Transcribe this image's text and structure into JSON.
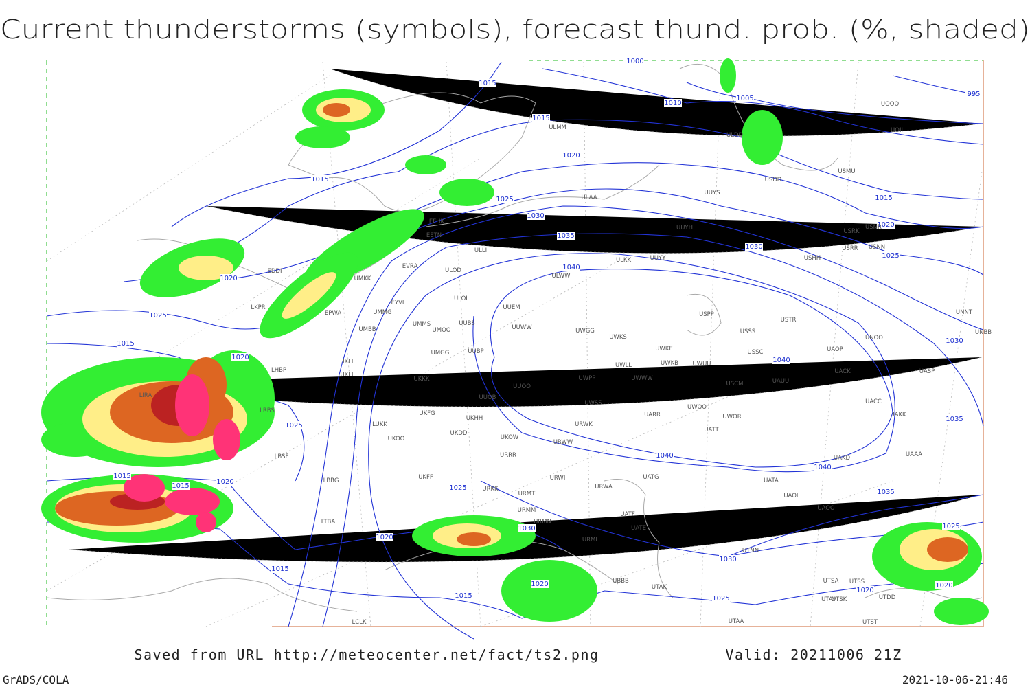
{
  "title": "Current thunderstorms (symbols), forecast thund. prob. (%, shaded)",
  "isobar_labels": [
    "1000",
    "1015",
    "1010",
    "1005",
    "995",
    "1015",
    "1020",
    "1025",
    "1030",
    "1035",
    "1040",
    "1015",
    "1020",
    "1025",
    "1015",
    "1020",
    "1025",
    "1015",
    "1015",
    "1020",
    "1025",
    "1030",
    "1020",
    "1015",
    "1015",
    "1020",
    "1025",
    "1030",
    "1035",
    "1040",
    "1040",
    "1040",
    "1035",
    "1030",
    "1030",
    "1025",
    "1020",
    "1015",
    "1025",
    "1020",
    "1020"
  ],
  "station_labels": [
    "ULMM",
    "ULAA",
    "UUYS",
    "UUYH",
    "UUYY",
    "ULKK",
    "ULWW",
    "ULOD",
    "ULOL",
    "UUEM",
    "UUWW",
    "UMMS",
    "UMOO",
    "UUBS",
    "UMMG",
    "UMBB",
    "UUBP",
    "UMGG",
    "UKLL",
    "UKLI",
    "UKKK",
    "UUOO",
    "UUOB",
    "UWGG",
    "UWKS",
    "UWKE",
    "UWKB",
    "UWUU",
    "UWLL",
    "UWWW",
    "UWPP",
    "UWSS",
    "USSS",
    "USTR",
    "USPP",
    "USSC",
    "USCM",
    "UAUU",
    "UACK",
    "UAOP",
    "UNOO",
    "UNNT",
    "UNBB",
    "UASP",
    "UACC",
    "UAKK",
    "UARR",
    "UWOO",
    "UWOR",
    "UATT",
    "URWK",
    "URWW",
    "UKOW",
    "UKDD",
    "UKHH",
    "UKFG",
    "LUKK",
    "UKOO",
    "URRR",
    "UAKD",
    "UAAA",
    "URWI",
    "UATG",
    "URWA",
    "UATA",
    "UAOL",
    "UAOO",
    "URMT",
    "URKK",
    "UKFF",
    "URMM",
    "URMN",
    "UATE",
    "UATF",
    "URML",
    "UTNN",
    "UBBB",
    "UTAK",
    "UTSA",
    "UTSS",
    "UTDD",
    "UTAV",
    "UTSK",
    "UTAA",
    "UTST",
    "LCLK",
    "LTBA",
    "LBBG",
    "LBSF",
    "LRBS",
    "LHBP",
    "LKPR",
    "EPWA",
    "EYVI",
    "EVRA",
    "EETN",
    "EFHK",
    "LIRA",
    "EDDI",
    "UMKK",
    "ULDD",
    "ULLI",
    "UOII",
    "UOOO",
    "USMU",
    "USDD",
    "USRR",
    "USNN",
    "USRK",
    "USNR",
    "USHH"
  ],
  "footer": {
    "source": "Saved from URL http://meteocenter.net/fact/ts2.png",
    "valid": "Valid: 20211006 21Z",
    "software": "GrADS/COLA",
    "timestamp": "2021-10-06-21:46"
  }
}
